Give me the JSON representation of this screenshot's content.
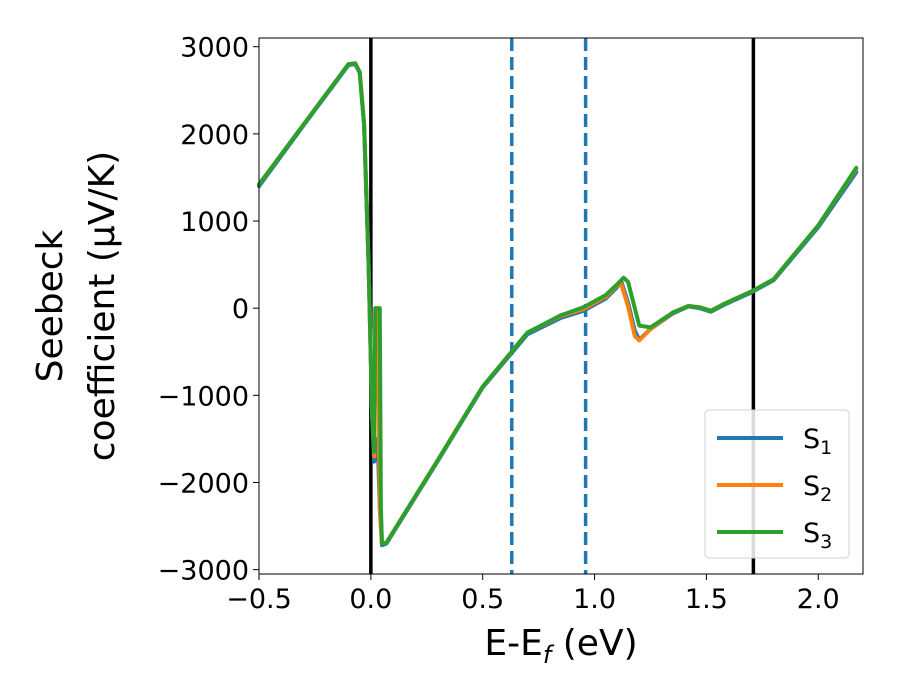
{
  "chart_data": {
    "type": "line",
    "xlabel": "E-E",
    "xlabel_sub": "f",
    "xlabel_unit": " (eV)",
    "ylabel_line1": "Seebeck",
    "ylabel_line2": "coefficient  (μV/K)",
    "xlim": [
      -0.5,
      2.2
    ],
    "ylim": [
      -3050,
      3100
    ],
    "xticks": [
      -0.5,
      0.0,
      0.5,
      1.0,
      1.5,
      2.0
    ],
    "xtick_labels": [
      "−0.5",
      "0.0",
      "0.5",
      "1.0",
      "1.5",
      "2.0"
    ],
    "yticks": [
      -3000,
      -2000,
      -1000,
      0,
      1000,
      2000,
      3000
    ],
    "ytick_labels": [
      "−3000",
      "−2000",
      "−1000",
      "0",
      "1000",
      "2000",
      "3000"
    ],
    "vlines": [
      {
        "x": 0.0,
        "style": "solid",
        "color": "#000000"
      },
      {
        "x": 1.71,
        "style": "solid",
        "color": "#000000"
      },
      {
        "x": 0.63,
        "style": "dashed",
        "color": "#1f77b4"
      },
      {
        "x": 0.96,
        "style": "dashed",
        "color": "#1f77b4"
      }
    ],
    "legend": {
      "placement": "lower-right"
    },
    "series": [
      {
        "name": "S",
        "name_sub": "1",
        "color": "#1f77b4",
        "x": [
          -0.5,
          -0.3,
          -0.1,
          -0.07,
          -0.05,
          -0.03,
          -0.01,
          0.005,
          0.015,
          0.02,
          0.03,
          0.04,
          0.05,
          0.07,
          0.3,
          0.5,
          0.7,
          0.85,
          0.95,
          1.05,
          1.1,
          1.12,
          1.15,
          1.18,
          1.2,
          1.25,
          1.35,
          1.42,
          1.47,
          1.52,
          1.58,
          1.7,
          1.8,
          2.0,
          2.17
        ],
        "y": [
          1400,
          2100,
          2790,
          2800,
          2700,
          2100,
          500,
          -1200,
          -1760,
          -1700,
          -1500,
          -2300,
          -2720,
          -2700,
          -1750,
          -910,
          -300,
          -110,
          -30,
          110,
          240,
          300,
          60,
          -260,
          -360,
          -240,
          -60,
          20,
          0,
          -40,
          40,
          180,
          320,
          930,
          1560
        ]
      },
      {
        "name": "S",
        "name_sub": "2",
        "color": "#ff7f0e",
        "x": [
          -0.5,
          -0.3,
          -0.1,
          -0.07,
          -0.05,
          -0.03,
          -0.01,
          0.005,
          0.015,
          0.02,
          0.03,
          0.04,
          0.05,
          0.07,
          0.3,
          0.5,
          0.7,
          0.85,
          0.95,
          1.05,
          1.1,
          1.12,
          1.15,
          1.18,
          1.2,
          1.25,
          1.35,
          1.42,
          1.47,
          1.52,
          1.58,
          1.7,
          1.8,
          2.0,
          2.17
        ],
        "y": [
          1420,
          2110,
          2800,
          2810,
          2710,
          2110,
          510,
          -1190,
          -1700,
          0,
          0,
          -2290,
          -2700,
          -2690,
          -1740,
          -900,
          -280,
          -90,
          -10,
          130,
          260,
          270,
          20,
          -320,
          -370,
          -240,
          -50,
          25,
          10,
          -30,
          50,
          190,
          330,
          950,
          1600
        ]
      },
      {
        "name": "S",
        "name_sub": "3",
        "color": "#2ca02c",
        "x": [
          -0.5,
          -0.3,
          -0.1,
          -0.07,
          -0.05,
          -0.03,
          -0.01,
          0.005,
          0.015,
          0.02,
          0.04,
          0.045,
          0.05,
          0.07,
          0.3,
          0.5,
          0.7,
          0.85,
          0.95,
          1.05,
          1.1,
          1.13,
          1.15,
          1.18,
          1.2,
          1.25,
          1.35,
          1.42,
          1.47,
          1.52,
          1.58,
          1.7,
          1.8,
          2.0,
          2.17
        ],
        "y": [
          1420,
          2110,
          2800,
          2810,
          2710,
          2110,
          510,
          -1190,
          -1650,
          0,
          0,
          -2280,
          -2700,
          -2690,
          -1740,
          -900,
          -280,
          -80,
          10,
          150,
          270,
          350,
          300,
          0,
          -200,
          -220,
          -50,
          25,
          10,
          -30,
          50,
          190,
          330,
          950,
          1610
        ]
      }
    ]
  }
}
